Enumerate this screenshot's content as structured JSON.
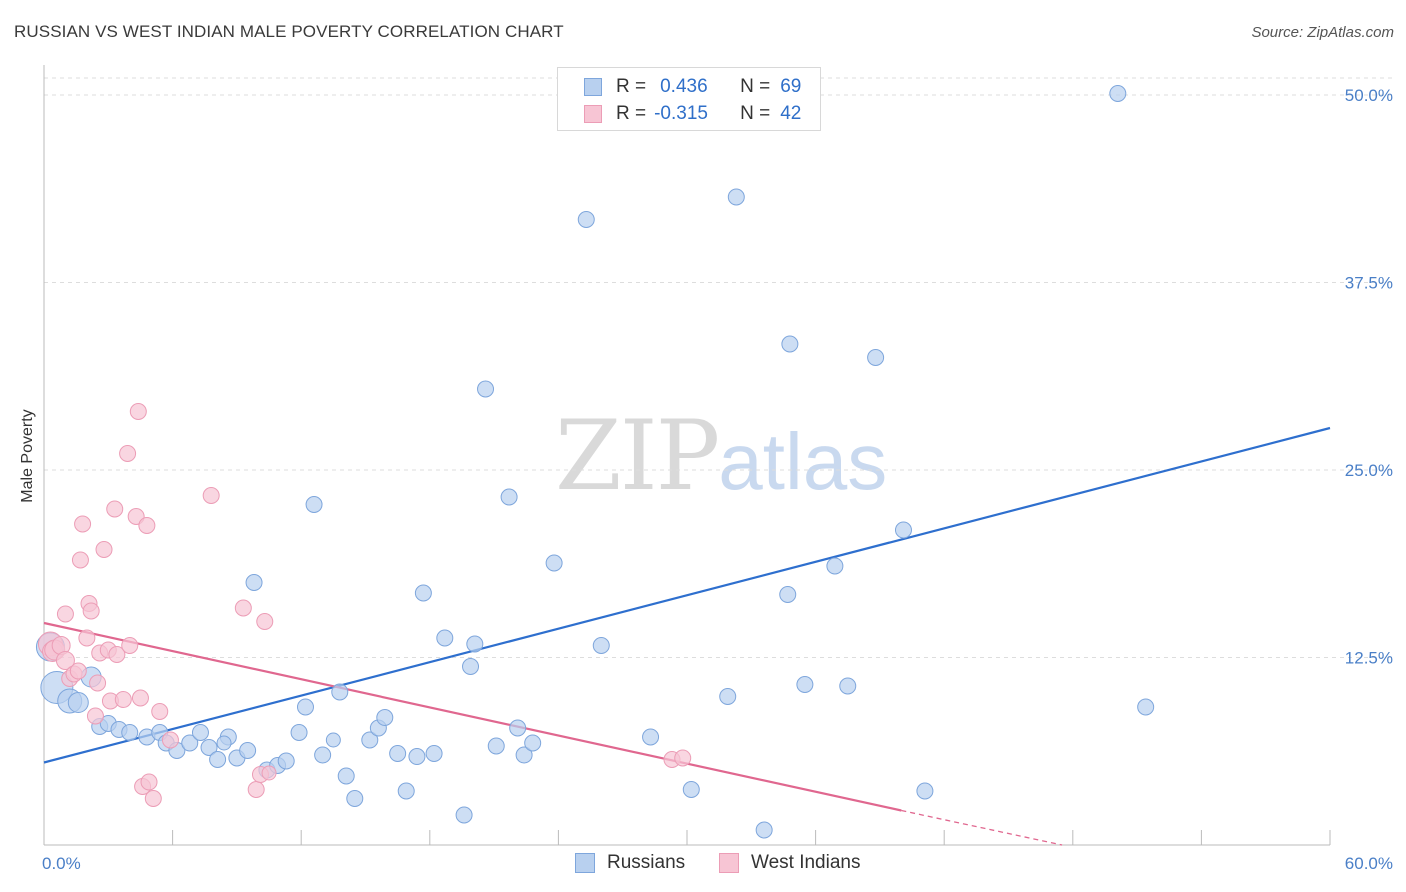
{
  "title": "RUSSIAN VS WEST INDIAN MALE POVERTY CORRELATION CHART",
  "source": "Source: ZipAtlas.com",
  "watermark": {
    "zip": "ZIP",
    "atlas": "atlas"
  },
  "legend": {
    "rows": [
      {
        "r_label": "R =",
        "r_value": "0.436",
        "n_label": "N =",
        "n_value": "69"
      },
      {
        "r_label": "R =",
        "r_value": "-0.315",
        "n_label": "N =",
        "n_value": "42"
      }
    ]
  },
  "bottom_legend": {
    "russians": "Russians",
    "west_indians": "West Indians"
  },
  "colors": {
    "blue_fill": "#b8d0ef",
    "blue_stroke": "#7ea6dc",
    "blue_line": "#2e6fce",
    "pink_fill": "#f7c5d4",
    "pink_stroke": "#ec9db6",
    "pink_line": "#e0678f",
    "tick_text": "#4a7fc7",
    "grid": "#dddddd"
  },
  "chart_data": {
    "type": "scatter",
    "title": "RUSSIAN VS WEST INDIAN MALE POVERTY CORRELATION CHART",
    "xlabel": "",
    "ylabel": "Male Poverty",
    "xlim": [
      0,
      60
    ],
    "ylim": [
      0,
      52
    ],
    "x_tick_labels": [
      "0.0%",
      "60.0%"
    ],
    "y_ticks": [
      12.5,
      25.0,
      37.5,
      50.0
    ],
    "y_tick_labels": [
      "12.5%",
      "25.0%",
      "37.5%",
      "50.0%"
    ],
    "grid": true,
    "series": [
      {
        "name": "Russians",
        "color": "#b8d0ef",
        "points": [
          {
            "x": 0.3,
            "y": 13.2,
            "s": 14
          },
          {
            "x": 0.6,
            "y": 10.5,
            "s": 16
          },
          {
            "x": 1.2,
            "y": 9.6,
            "s": 12
          },
          {
            "x": 1.6,
            "y": 9.5,
            "s": 10
          },
          {
            "x": 2.2,
            "y": 11.2,
            "s": 10
          },
          {
            "x": 2.6,
            "y": 7.9,
            "s": 8
          },
          {
            "x": 3.0,
            "y": 8.1,
            "s": 8
          },
          {
            "x": 3.5,
            "y": 7.7,
            "s": 8
          },
          {
            "x": 4.0,
            "y": 7.5,
            "s": 8
          },
          {
            "x": 4.8,
            "y": 7.2,
            "s": 8
          },
          {
            "x": 5.4,
            "y": 7.5,
            "s": 8
          },
          {
            "x": 5.7,
            "y": 6.8,
            "s": 8
          },
          {
            "x": 6.2,
            "y": 6.3,
            "s": 8
          },
          {
            "x": 6.8,
            "y": 6.8,
            "s": 8
          },
          {
            "x": 7.3,
            "y": 7.5,
            "s": 8
          },
          {
            "x": 7.7,
            "y": 6.5,
            "s": 8
          },
          {
            "x": 8.1,
            "y": 5.7,
            "s": 8
          },
          {
            "x": 8.6,
            "y": 7.2,
            "s": 8
          },
          {
            "x": 9.0,
            "y": 5.8,
            "s": 8
          },
          {
            "x": 9.5,
            "y": 6.3,
            "s": 8
          },
          {
            "x": 9.8,
            "y": 17.5,
            "s": 8
          },
          {
            "x": 10.4,
            "y": 5.0,
            "s": 8
          },
          {
            "x": 10.9,
            "y": 5.3,
            "s": 8
          },
          {
            "x": 11.3,
            "y": 5.6,
            "s": 8
          },
          {
            "x": 11.9,
            "y": 7.5,
            "s": 8
          },
          {
            "x": 12.2,
            "y": 9.2,
            "s": 8
          },
          {
            "x": 12.6,
            "y": 22.7,
            "s": 8
          },
          {
            "x": 13.0,
            "y": 6.0,
            "s": 8
          },
          {
            "x": 13.8,
            "y": 10.2,
            "s": 8
          },
          {
            "x": 14.1,
            "y": 4.6,
            "s": 8
          },
          {
            "x": 14.5,
            "y": 3.1,
            "s": 8
          },
          {
            "x": 15.2,
            "y": 7.0,
            "s": 8
          },
          {
            "x": 15.6,
            "y": 7.8,
            "s": 8
          },
          {
            "x": 15.9,
            "y": 8.5,
            "s": 8
          },
          {
            "x": 16.5,
            "y": 6.1,
            "s": 8
          },
          {
            "x": 16.9,
            "y": 3.6,
            "s": 8
          },
          {
            "x": 17.4,
            "y": 5.9,
            "s": 8
          },
          {
            "x": 17.7,
            "y": 16.8,
            "s": 8
          },
          {
            "x": 18.2,
            "y": 6.1,
            "s": 8
          },
          {
            "x": 18.7,
            "y": 13.8,
            "s": 8
          },
          {
            "x": 19.6,
            "y": 2.0,
            "s": 8
          },
          {
            "x": 19.9,
            "y": 11.9,
            "s": 8
          },
          {
            "x": 20.1,
            "y": 13.4,
            "s": 8
          },
          {
            "x": 20.6,
            "y": 30.4,
            "s": 8
          },
          {
            "x": 21.1,
            "y": 6.6,
            "s": 8
          },
          {
            "x": 21.7,
            "y": 23.2,
            "s": 8
          },
          {
            "x": 22.1,
            "y": 7.8,
            "s": 8
          },
          {
            "x": 22.4,
            "y": 6.0,
            "s": 8
          },
          {
            "x": 22.8,
            "y": 6.8,
            "s": 8
          },
          {
            "x": 23.8,
            "y": 18.8,
            "s": 8
          },
          {
            "x": 25.3,
            "y": 41.7,
            "s": 8
          },
          {
            "x": 26.0,
            "y": 13.3,
            "s": 8
          },
          {
            "x": 28.3,
            "y": 7.2,
            "s": 8
          },
          {
            "x": 30.2,
            "y": 3.7,
            "s": 8
          },
          {
            "x": 31.9,
            "y": 9.9,
            "s": 8
          },
          {
            "x": 32.3,
            "y": 43.2,
            "s": 8
          },
          {
            "x": 33.6,
            "y": 1.0,
            "s": 8
          },
          {
            "x": 34.8,
            "y": 33.4,
            "s": 8
          },
          {
            "x": 34.7,
            "y": 16.7,
            "s": 8
          },
          {
            "x": 35.5,
            "y": 10.7,
            "s": 8
          },
          {
            "x": 36.9,
            "y": 18.6,
            "s": 8
          },
          {
            "x": 37.5,
            "y": 10.6,
            "s": 8
          },
          {
            "x": 38.8,
            "y": 32.5,
            "s": 8
          },
          {
            "x": 40.1,
            "y": 21.0,
            "s": 8
          },
          {
            "x": 41.1,
            "y": 3.6,
            "s": 8
          },
          {
            "x": 50.1,
            "y": 50.1,
            "s": 8
          },
          {
            "x": 51.4,
            "y": 9.2,
            "s": 8
          },
          {
            "x": 8.4,
            "y": 6.8,
            "s": 7
          },
          {
            "x": 13.5,
            "y": 7.0,
            "s": 7
          }
        ]
      },
      {
        "name": "West Indians",
        "color": "#f7c5d4",
        "points": [
          {
            "x": 0.3,
            "y": 13.4,
            "s": 12
          },
          {
            "x": 0.4,
            "y": 12.9,
            "s": 10
          },
          {
            "x": 0.5,
            "y": 13.0,
            "s": 10
          },
          {
            "x": 0.8,
            "y": 13.3,
            "s": 9
          },
          {
            "x": 1.0,
            "y": 12.3,
            "s": 9
          },
          {
            "x": 1.0,
            "y": 15.4,
            "s": 8
          },
          {
            "x": 1.2,
            "y": 11.1,
            "s": 8
          },
          {
            "x": 1.4,
            "y": 11.4,
            "s": 8
          },
          {
            "x": 1.6,
            "y": 11.6,
            "s": 8
          },
          {
            "x": 1.7,
            "y": 19.0,
            "s": 8
          },
          {
            "x": 1.8,
            "y": 21.4,
            "s": 8
          },
          {
            "x": 2.0,
            "y": 13.8,
            "s": 8
          },
          {
            "x": 2.1,
            "y": 16.1,
            "s": 8
          },
          {
            "x": 2.2,
            "y": 15.6,
            "s": 8
          },
          {
            "x": 2.4,
            "y": 8.6,
            "s": 8
          },
          {
            "x": 2.5,
            "y": 10.8,
            "s": 8
          },
          {
            "x": 2.6,
            "y": 12.8,
            "s": 8
          },
          {
            "x": 2.8,
            "y": 19.7,
            "s": 8
          },
          {
            "x": 3.0,
            "y": 13.0,
            "s": 8
          },
          {
            "x": 3.1,
            "y": 9.6,
            "s": 8
          },
          {
            "x": 3.3,
            "y": 22.4,
            "s": 8
          },
          {
            "x": 3.4,
            "y": 12.7,
            "s": 8
          },
          {
            "x": 3.7,
            "y": 9.7,
            "s": 8
          },
          {
            "x": 3.9,
            "y": 26.1,
            "s": 8
          },
          {
            "x": 4.0,
            "y": 13.3,
            "s": 8
          },
          {
            "x": 4.3,
            "y": 21.9,
            "s": 8
          },
          {
            "x": 4.4,
            "y": 28.9,
            "s": 8
          },
          {
            "x": 4.5,
            "y": 9.8,
            "s": 8
          },
          {
            "x": 4.6,
            "y": 3.9,
            "s": 8
          },
          {
            "x": 4.8,
            "y": 21.3,
            "s": 8
          },
          {
            "x": 4.9,
            "y": 4.2,
            "s": 8
          },
          {
            "x": 5.1,
            "y": 3.1,
            "s": 8
          },
          {
            "x": 5.4,
            "y": 8.9,
            "s": 8
          },
          {
            "x": 5.9,
            "y": 7.0,
            "s": 8
          },
          {
            "x": 7.8,
            "y": 23.3,
            "s": 8
          },
          {
            "x": 9.3,
            "y": 15.8,
            "s": 8
          },
          {
            "x": 9.9,
            "y": 3.7,
            "s": 8
          },
          {
            "x": 10.1,
            "y": 4.7,
            "s": 8
          },
          {
            "x": 10.3,
            "y": 14.9,
            "s": 8
          },
          {
            "x": 29.3,
            "y": 5.7,
            "s": 8
          },
          {
            "x": 29.8,
            "y": 5.8,
            "s": 8
          },
          {
            "x": 10.5,
            "y": 4.8,
            "s": 7
          }
        ]
      }
    ],
    "trend_lines": [
      {
        "name": "Russians",
        "x_start": 0,
        "y_start": 5.5,
        "x_end": 60,
        "y_end": 27.8,
        "dashed_after": null
      },
      {
        "name": "West Indians",
        "x_start": 0,
        "y_start": 14.8,
        "x_end": 40,
        "y_end": 2.3,
        "dashed_to_x": 47.5,
        "dashed_to_y": 0
      }
    ]
  }
}
